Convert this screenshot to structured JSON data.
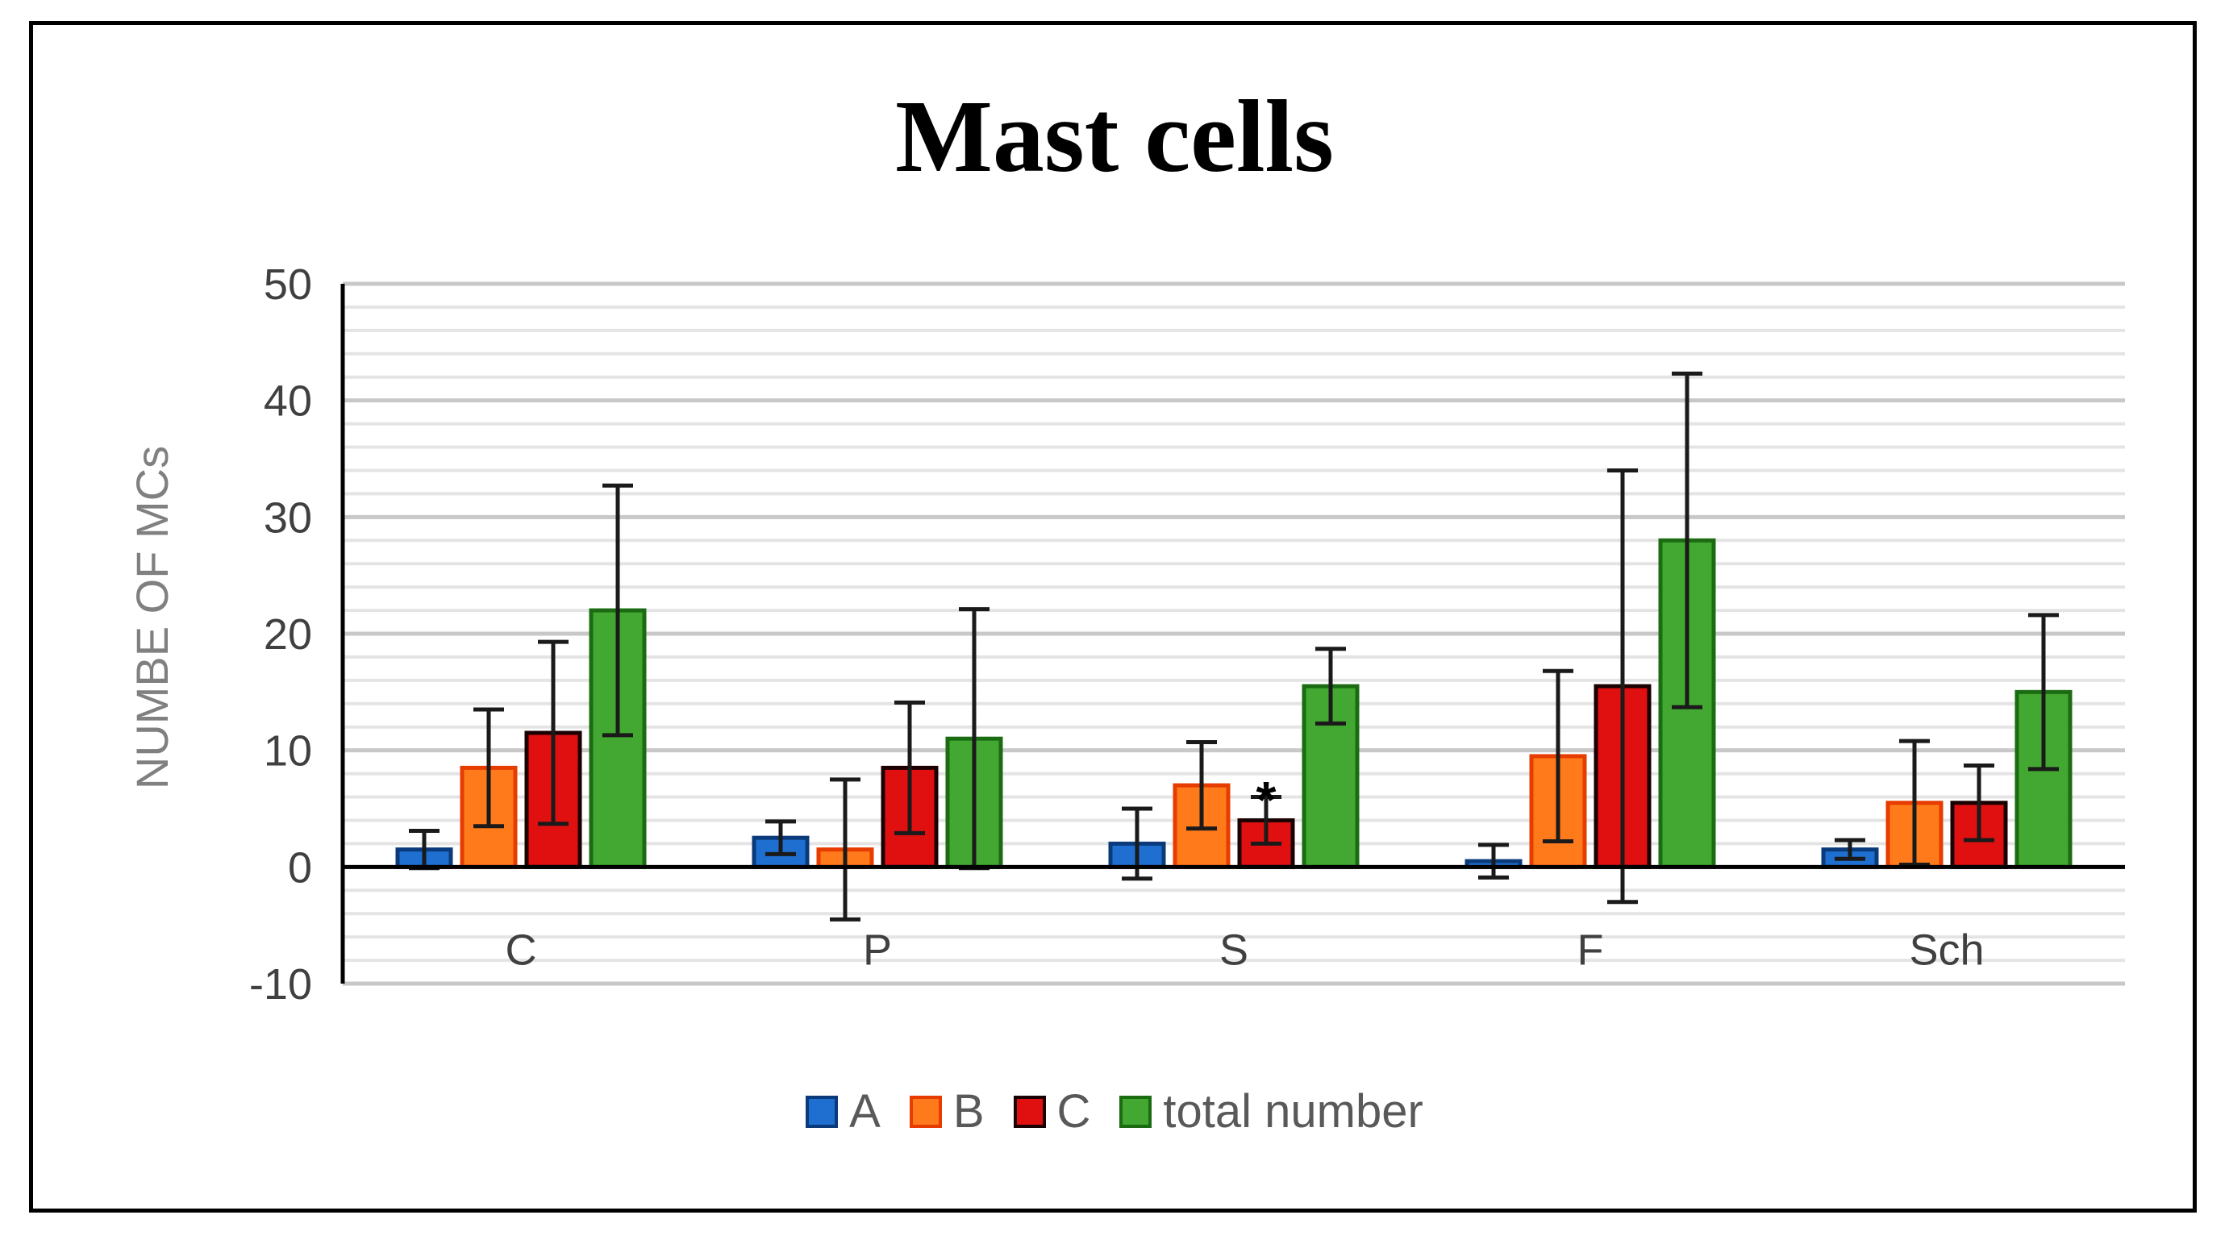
{
  "chart_data": {
    "type": "bar",
    "title": "Mast cells",
    "ylabel": "NUMBE OF MCs",
    "xlabel": "",
    "ylim": [
      -10,
      50
    ],
    "yticks": [
      50,
      40,
      30,
      20,
      10,
      0,
      -10
    ],
    "categories": [
      "C",
      "P",
      "S",
      "F",
      "Sch"
    ],
    "series": [
      {
        "name": "A",
        "fill": "#1f6fd1",
        "stroke": "#0b3a7a",
        "values": [
          1.5,
          2.5,
          2.0,
          0.5,
          1.5
        ],
        "errors": [
          1.6,
          1.4,
          3.0,
          1.4,
          0.8
        ]
      },
      {
        "name": "B",
        "fill": "#ff7a1a",
        "stroke": "#e63c00",
        "values": [
          8.5,
          1.5,
          7.0,
          9.5,
          5.5
        ],
        "errors": [
          5.0,
          6.0,
          3.7,
          7.3,
          5.3
        ]
      },
      {
        "name": "C",
        "fill": "#e01010",
        "stroke": "#1a0000",
        "values": [
          11.5,
          8.5,
          4.0,
          15.5,
          5.5
        ],
        "errors": [
          7.8,
          5.6,
          2.0,
          18.5,
          3.2
        ]
      },
      {
        "name": "total number",
        "fill": "#43a832",
        "stroke": "#1b6b13",
        "values": [
          22.0,
          11.0,
          15.5,
          28.0,
          15.0
        ],
        "errors": [
          10.7,
          11.1,
          3.2,
          14.3,
          6.6
        ]
      }
    ],
    "annotations": [
      {
        "category": "S",
        "series": "C",
        "text": "*"
      }
    ],
    "grid": true,
    "legend_position": "bottom"
  }
}
